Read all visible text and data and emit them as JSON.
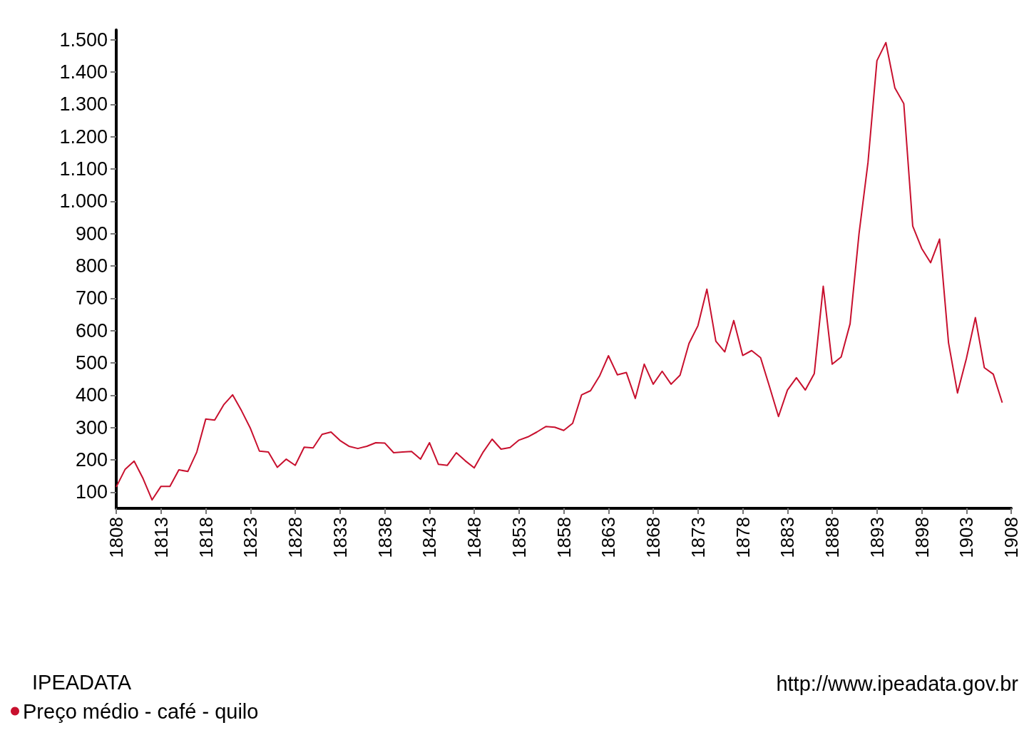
{
  "chart_data": {
    "type": "line",
    "x": [
      1808,
      1809,
      1810,
      1811,
      1812,
      1813,
      1814,
      1815,
      1816,
      1817,
      1818,
      1819,
      1820,
      1821,
      1822,
      1823,
      1824,
      1825,
      1826,
      1827,
      1828,
      1829,
      1830,
      1831,
      1832,
      1833,
      1834,
      1835,
      1836,
      1837,
      1838,
      1839,
      1840,
      1841,
      1842,
      1843,
      1844,
      1845,
      1846,
      1847,
      1848,
      1849,
      1850,
      1851,
      1852,
      1853,
      1854,
      1855,
      1856,
      1857,
      1858,
      1859,
      1860,
      1861,
      1862,
      1863,
      1864,
      1865,
      1866,
      1867,
      1868,
      1869,
      1870,
      1871,
      1872,
      1873,
      1874,
      1875,
      1876,
      1877,
      1878,
      1879,
      1880,
      1881,
      1882,
      1883,
      1884,
      1885,
      1886,
      1887,
      1888,
      1889,
      1890,
      1891,
      1892,
      1893,
      1894,
      1895,
      1896,
      1897,
      1898,
      1899,
      1900,
      1901,
      1902,
      1903,
      1904,
      1905,
      1906,
      1907
    ],
    "series": [
      {
        "name": "Preço médio - café - quilo",
        "color": "#c8102e",
        "values": [
          116,
          171,
          196,
          142,
          76,
          118,
          118,
          169,
          164,
          224,
          326,
          323,
          370,
          401,
          352,
          297,
          227,
          224,
          177,
          202,
          183,
          239,
          237,
          279,
          286,
          260,
          242,
          235,
          242,
          253,
          252,
          222,
          224,
          226,
          202,
          253,
          186,
          183,
          222,
          197,
          175,
          224,
          264,
          233,
          238,
          261,
          271,
          286,
          303,
          301,
          291,
          313,
          401,
          414,
          459,
          522,
          463,
          470,
          390,
          496,
          434,
          474,
          434,
          462,
          560,
          615,
          728,
          567,
          534,
          631,
          523,
          538,
          516,
          426,
          334,
          416,
          454,
          416,
          467,
          737,
          496,
          518,
          621,
          900,
          1120,
          1435,
          1491,
          1351,
          1302,
          923,
          854,
          810,
          883,
          562,
          407,
          514,
          640,
          485,
          465,
          377
        ]
      }
    ],
    "xlim": [
      1808,
      1908
    ],
    "xticks": [
      1808,
      1813,
      1818,
      1823,
      1828,
      1833,
      1838,
      1843,
      1848,
      1853,
      1858,
      1863,
      1868,
      1873,
      1878,
      1883,
      1888,
      1893,
      1898,
      1903,
      1908
    ],
    "ylim": [
      50,
      1530
    ],
    "yticks": [
      100,
      200,
      300,
      400,
      500,
      600,
      700,
      800,
      900,
      {
        "value": 1000,
        "label": "1.000"
      },
      {
        "value": 1100,
        "label": "1.100"
      },
      {
        "value": 1200,
        "label": "1.200"
      },
      {
        "value": 1300,
        "label": "1.300"
      },
      {
        "value": 1400,
        "label": "1.400"
      },
      {
        "value": 1500,
        "label": "1.500"
      }
    ],
    "grid": false,
    "legend": "bottom left",
    "marker": "none",
    "line_style": "solid",
    "annotations": [
      "IPEADATA",
      "http://www.ipeadata.gov.br"
    ]
  }
}
